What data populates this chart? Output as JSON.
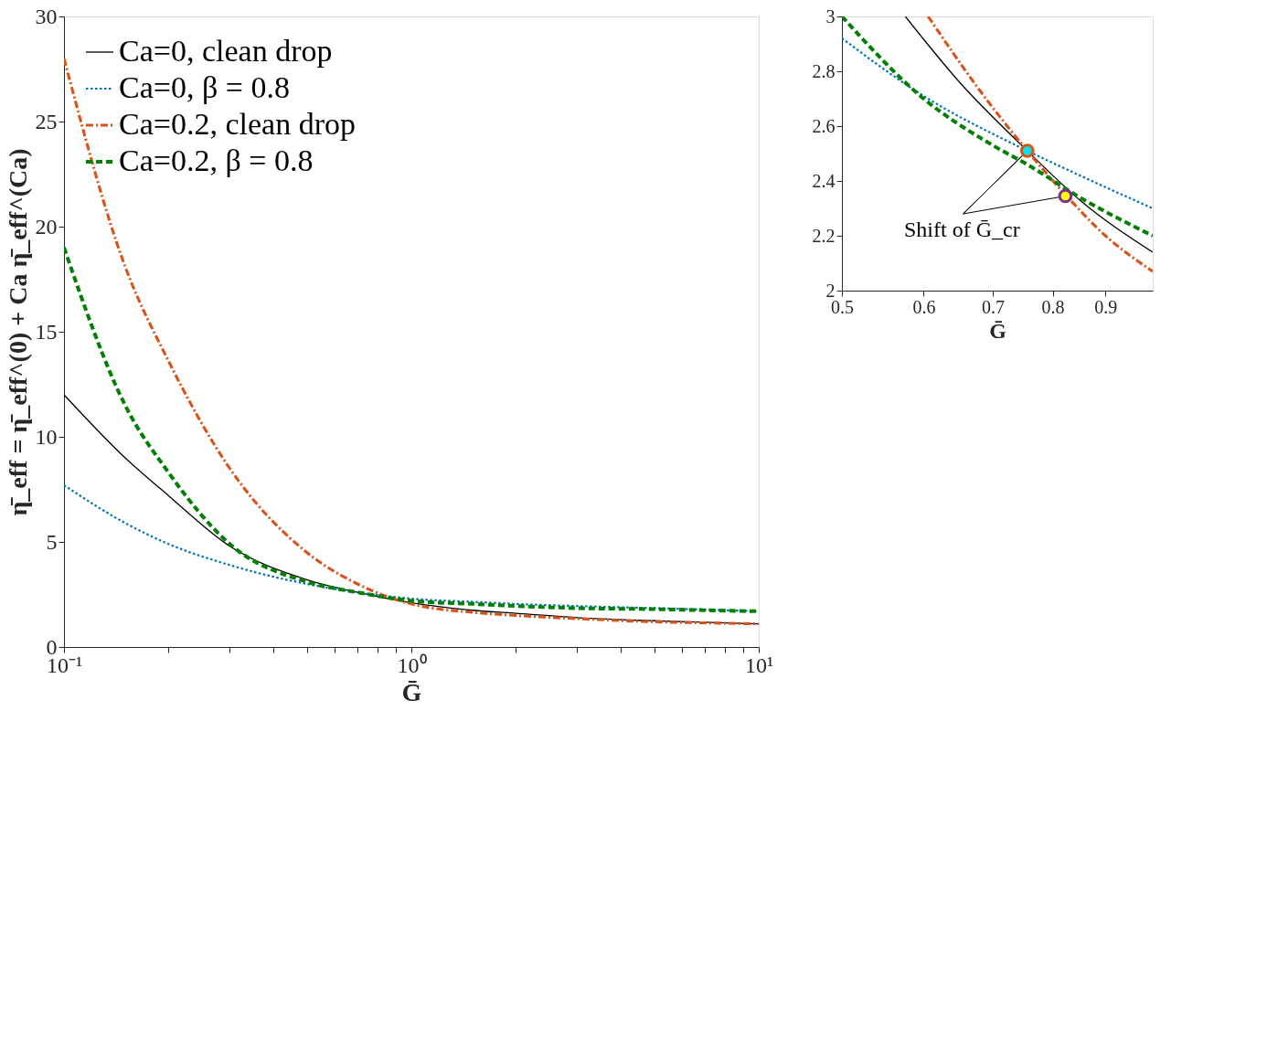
{
  "chart_data": [
    {
      "type": "line",
      "xlabel": "Ḡ",
      "ylabel": "η̄_eff = η̄_eff^(0) + Ca η̄_eff^(Ca)",
      "log": "x",
      "legend": "top left",
      "grid": false,
      "xlim": [
        0.1,
        10
      ],
      "ylim": [
        0,
        30
      ],
      "xticks": [
        {
          "value": 0.1,
          "label": "10⁻¹"
        },
        {
          "value": 0.2,
          "label": null
        },
        {
          "value": 0.3,
          "label": null
        },
        {
          "value": 0.4,
          "label": null
        },
        {
          "value": 0.5,
          "label": null
        },
        {
          "value": 0.6,
          "label": null
        },
        {
          "value": 0.7,
          "label": null
        },
        {
          "value": 0.8,
          "label": null
        },
        {
          "value": 0.9,
          "label": null
        },
        {
          "value": 1,
          "label": "10⁰"
        },
        {
          "value": 2,
          "label": null
        },
        {
          "value": 3,
          "label": null
        },
        {
          "value": 4,
          "label": null
        },
        {
          "value": 5,
          "label": null
        },
        {
          "value": 6,
          "label": null
        },
        {
          "value": 7,
          "label": null
        },
        {
          "value": 8,
          "label": null
        },
        {
          "value": 9,
          "label": null
        },
        {
          "value": 10,
          "label": "10¹"
        }
      ],
      "yticks": [
        0,
        5,
        10,
        15,
        20,
        25,
        30
      ],
      "x": [
        0.1,
        0.15,
        0.2,
        0.3,
        0.5,
        0.7,
        1,
        1.5,
        2,
        3,
        5,
        7,
        10
      ],
      "series": [
        {
          "name": "Ca=0, clean drop",
          "color": "#000000",
          "line_style": "solid",
          "values": [
            12,
            9.0,
            7.2,
            4.8,
            3.2,
            2.6,
            2.1,
            1.75,
            1.6,
            1.4,
            1.25,
            1.18,
            1.1
          ]
        },
        {
          "name": "Ca=0, β = 0.8",
          "color": "#0072bd",
          "line_style": "dotted",
          "values": [
            7.7,
            5.9,
            4.9,
            3.9,
            3.0,
            2.6,
            2.3,
            2.15,
            2.05,
            1.95,
            1.85,
            1.78,
            1.7
          ]
        },
        {
          "name": "Ca=0.2, clean drop",
          "color": "#d95319",
          "line_style": "dashdot",
          "values": [
            28,
            18.1,
            13.6,
            8.5,
            4.5,
            3.0,
            2.05,
            1.65,
            1.5,
            1.35,
            1.2,
            1.15,
            1.1
          ]
        },
        {
          "name": "Ca=0.2, β = 0.8",
          "color": "#008000",
          "line_style": "dashed",
          "values": [
            19,
            11.5,
            8.3,
            4.9,
            3.1,
            2.6,
            2.2,
            2.05,
            1.95,
            1.85,
            1.8,
            1.75,
            1.7
          ]
        }
      ]
    },
    {
      "type": "line",
      "xlabel": "Ḡ",
      "log": "x",
      "legend": false,
      "grid": false,
      "xlim": [
        0.5,
        1
      ],
      "ylim": [
        2,
        3
      ],
      "xticks": [
        0.5,
        0.6,
        0.7,
        0.8,
        0.9
      ],
      "yticks": [
        2,
        2.2,
        2.4,
        2.6,
        2.8,
        3
      ],
      "annotations": [
        {
          "text": "Shift of Ḡ_cr",
          "x": 0.756,
          "y": 2.51
        }
      ],
      "series": [
        {
          "color": "#000000",
          "line_style": "solid",
          "x": [
            0.576,
            0.65,
            0.756,
            0.85,
            1
          ],
          "values": [
            3.0,
            2.76,
            2.51,
            2.33,
            2.14
          ]
        },
        {
          "color": "#0072bd",
          "line_style": "dotted",
          "x": [
            0.5,
            0.6,
            0.756,
            0.85,
            1
          ],
          "values": [
            2.92,
            2.71,
            2.51,
            2.42,
            2.3
          ]
        },
        {
          "color": "#d95319",
          "line_style": "dashdot",
          "x": [
            0.606,
            0.68,
            0.756,
            0.823,
            0.9,
            1
          ],
          "values": [
            3.0,
            2.73,
            2.51,
            2.35,
            2.2,
            2.07
          ]
        },
        {
          "color": "#008000",
          "line_style": "dashed",
          "x": [
            0.5,
            0.6,
            0.7,
            0.756,
            0.85,
            1
          ],
          "values": [
            3.0,
            2.7,
            2.53,
            2.46,
            2.34,
            2.2
          ]
        },
        {
          "type": "scatter",
          "marker": "circle",
          "x": [
            0.756,
            0.823
          ],
          "values": [
            2.51,
            2.345
          ],
          "colors": [
            "#00e5ee",
            "#ffff00"
          ]
        }
      ]
    }
  ]
}
